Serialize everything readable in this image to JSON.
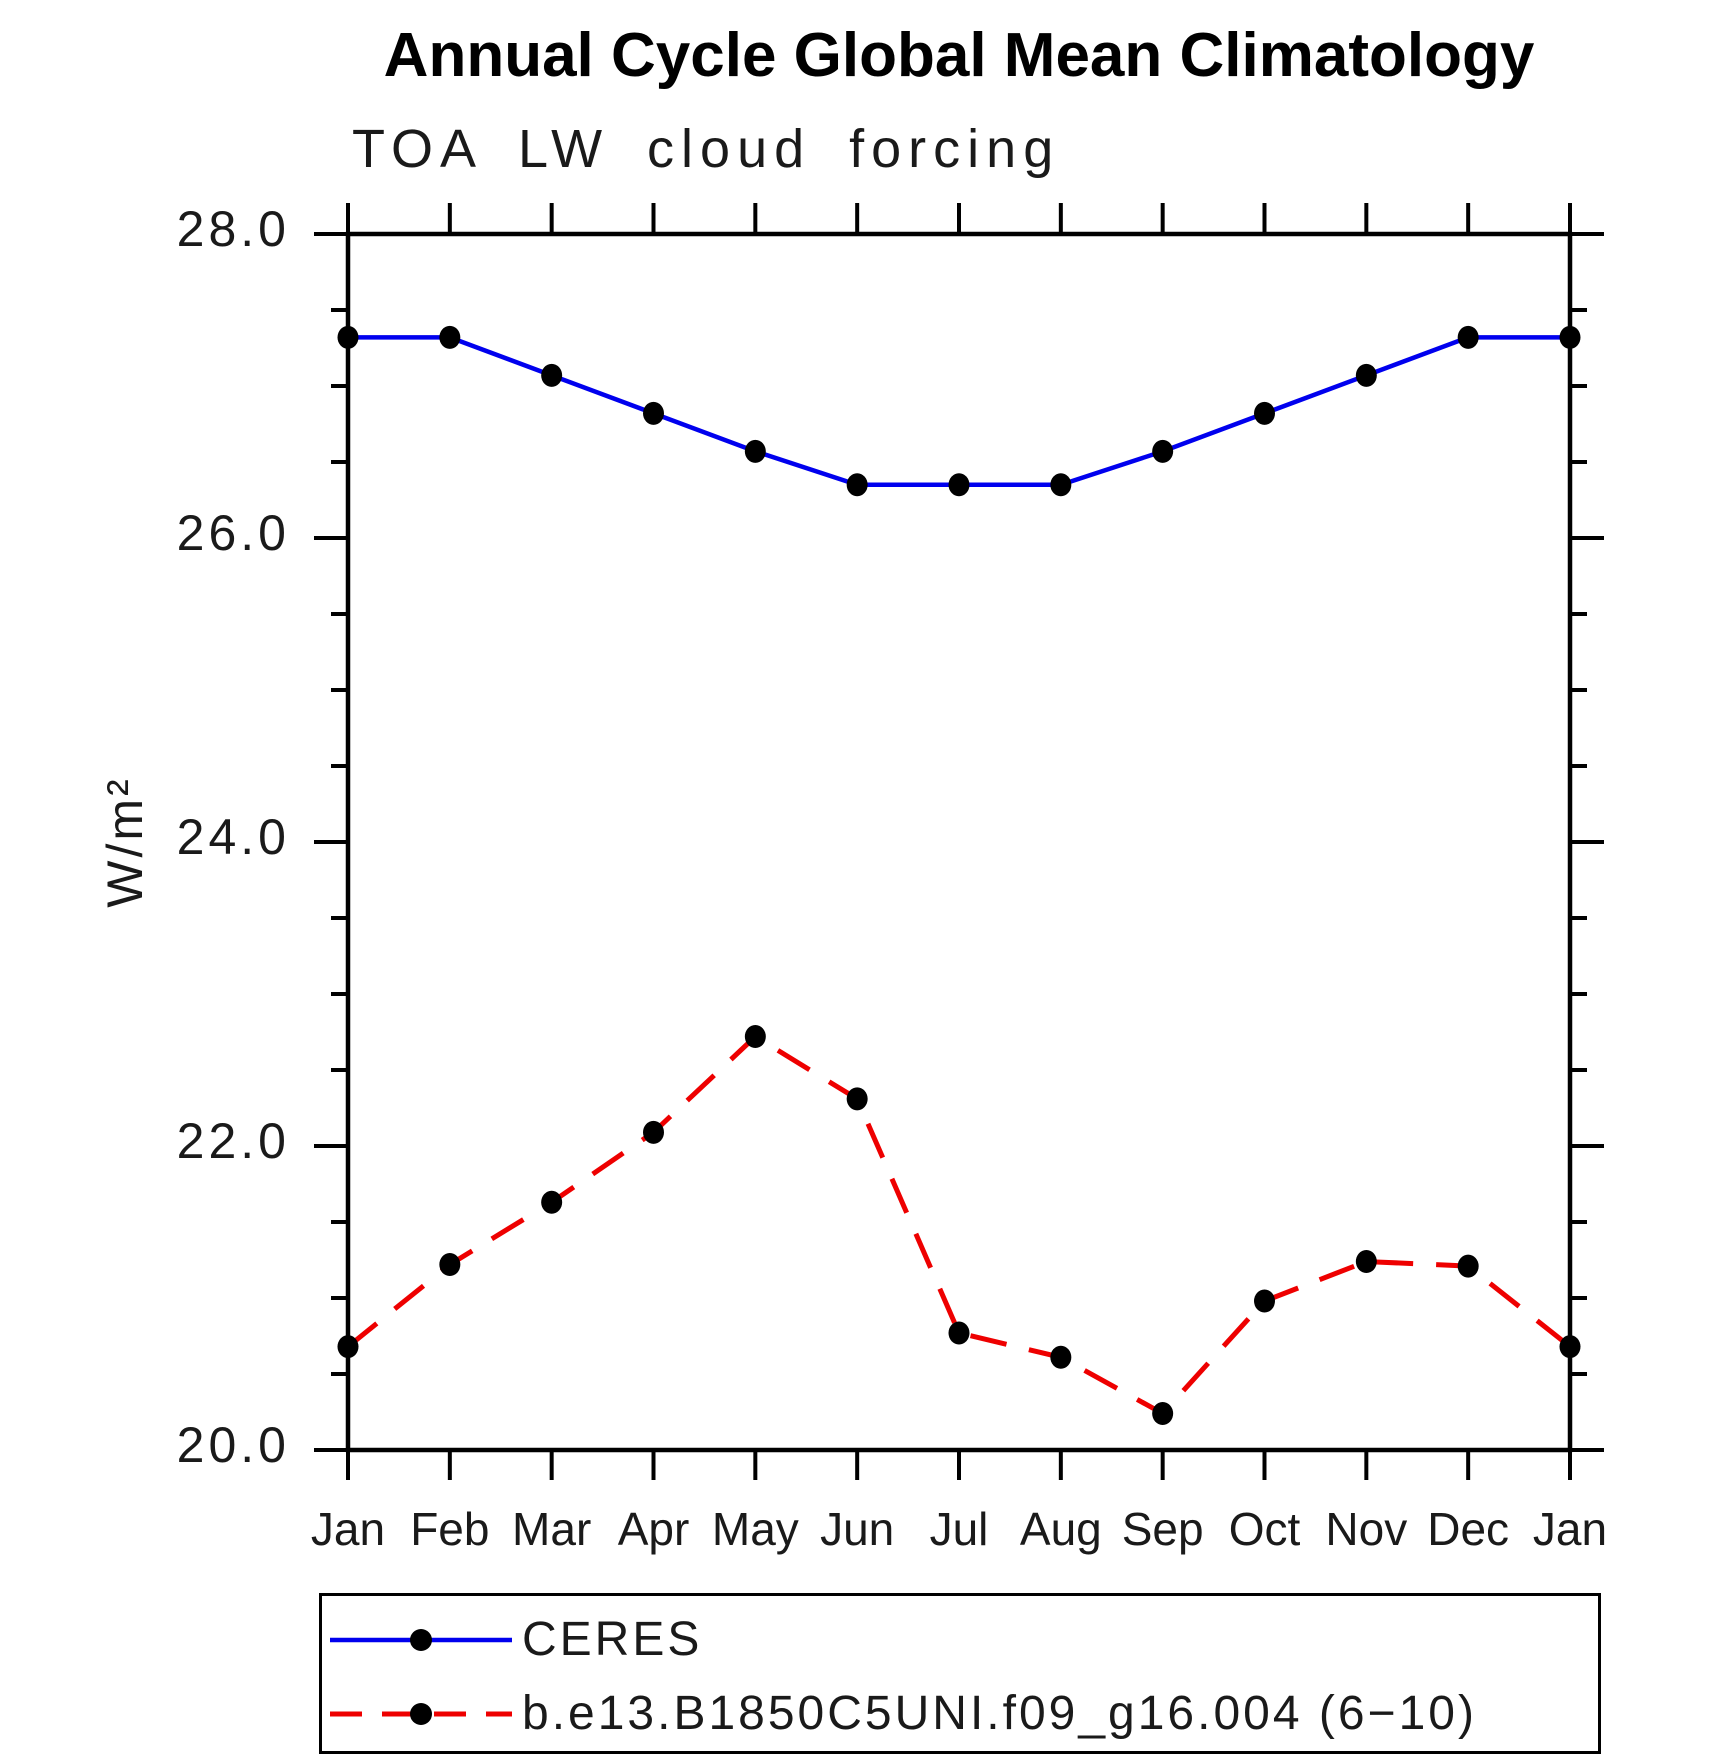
{
  "chart_data": {
    "type": "line",
    "title": "Annual Cycle Global Mean Climatology",
    "subtitle": "TOA LW cloud forcing",
    "ylabel": "W/m²",
    "xlabel": "",
    "x_categories": [
      "Jan",
      "Feb",
      "Mar",
      "Apr",
      "May",
      "Jun",
      "Jul",
      "Aug",
      "Sep",
      "Oct",
      "Nov",
      "Dec",
      "Jan"
    ],
    "y_tick_labels": [
      "28.0",
      "26.0",
      "24.0",
      "22.0",
      "20.0"
    ],
    "y_tick_values": [
      28.0,
      26.0,
      24.0,
      22.0,
      20.0
    ],
    "y_minor_step": 0.5,
    "ylim": [
      20.0,
      28.0
    ],
    "grid": false,
    "legend_position": "bottom",
    "frame_color": "#000000",
    "series": [
      {
        "name": "CERES",
        "color": "#0000ee",
        "style": "solid",
        "marker": "circle",
        "marker_color": "#000000",
        "values": [
          27.32,
          27.32,
          27.07,
          26.82,
          26.57,
          26.35,
          26.35,
          26.35,
          26.57,
          26.82,
          27.07,
          27.32,
          27.32
        ]
      },
      {
        "name": "b.e13.B1850C5UNI.f09_g16.004 (6−10)",
        "color": "#ee0000",
        "style": "dashed",
        "marker": "circle",
        "marker_color": "#000000",
        "values": [
          20.68,
          21.22,
          21.63,
          22.09,
          22.72,
          22.31,
          20.77,
          20.61,
          20.24,
          20.98,
          21.24,
          21.21,
          20.68
        ]
      }
    ]
  }
}
